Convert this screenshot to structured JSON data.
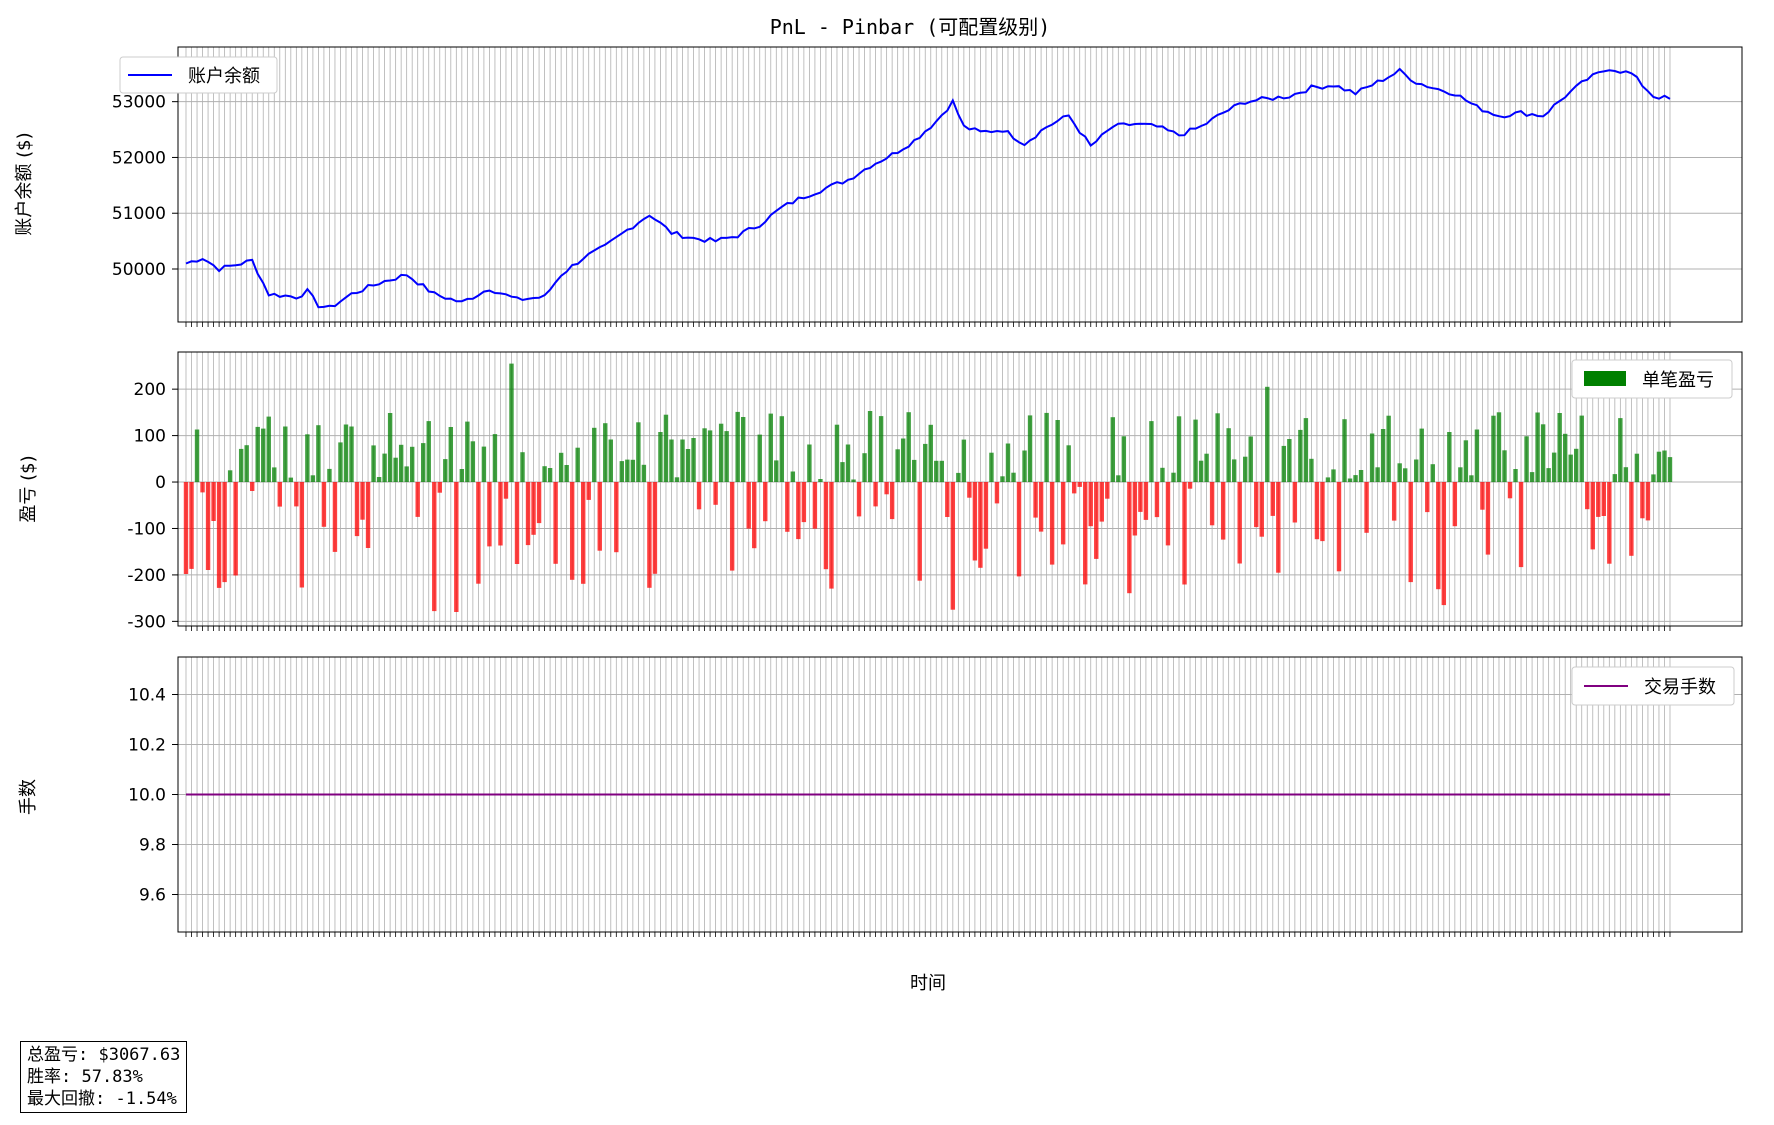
{
  "figure": {
    "title": "PnL - Pinbar (可配置级别)",
    "xlabel": "时间",
    "stats": [
      "总盈亏: $3067.63",
      "胜率: 57.83%",
      "最大回撤: -1.54%"
    ],
    "colors": {
      "balance": "#0000ff",
      "pnl_positive": "#008000",
      "pnl_negative": "#ff0000",
      "lots": "#800080",
      "grid": "#b0b0b0"
    }
  },
  "chart_data": [
    {
      "type": "line",
      "ylabel": "账户余额 ($)",
      "legend": "top-left",
      "ylim": [
        49050,
        53980
      ],
      "yticks": [
        50000,
        51000,
        52000,
        53000
      ],
      "grid": true,
      "n_points": 270,
      "series": [
        {
          "name": "账户余额",
          "anchors": [
            [
              0,
              50100
            ],
            [
              3,
              50200
            ],
            [
              6,
              50000
            ],
            [
              10,
              50100
            ],
            [
              12,
              50150
            ],
            [
              15,
              49550
            ],
            [
              20,
              49500
            ],
            [
              22,
              49600
            ],
            [
              24,
              49350
            ],
            [
              26,
              49300
            ],
            [
              30,
              49550
            ],
            [
              35,
              49750
            ],
            [
              40,
              49900
            ],
            [
              45,
              49550
            ],
            [
              50,
              49400
            ],
            [
              55,
              49650
            ],
            [
              60,
              49450
            ],
            [
              65,
              49500
            ],
            [
              68,
              49900
            ],
            [
              72,
              50200
            ],
            [
              76,
              50400
            ],
            [
              80,
              50700
            ],
            [
              84,
              50980
            ],
            [
              88,
              50650
            ],
            [
              92,
              50550
            ],
            [
              96,
              50500
            ],
            [
              100,
              50600
            ],
            [
              104,
              50800
            ],
            [
              108,
              51100
            ],
            [
              112,
              51300
            ],
            [
              116,
              51450
            ],
            [
              120,
              51600
            ],
            [
              124,
              51850
            ],
            [
              128,
              52050
            ],
            [
              132,
              52300
            ],
            [
              136,
              52650
            ],
            [
              139,
              53000
            ],
            [
              141,
              52550
            ],
            [
              144,
              52450
            ],
            [
              148,
              52500
            ],
            [
              152,
              52250
            ],
            [
              156,
              52550
            ],
            [
              160,
              52750
            ],
            [
              164,
              52200
            ],
            [
              168,
              52550
            ],
            [
              172,
              52600
            ],
            [
              176,
              52550
            ],
            [
              180,
              52400
            ],
            [
              184,
              52550
            ],
            [
              188,
              52800
            ],
            [
              192,
              53000
            ],
            [
              196,
              53050
            ],
            [
              200,
              53100
            ],
            [
              204,
              53250
            ],
            [
              208,
              53300
            ],
            [
              212,
              53150
            ],
            [
              216,
              53350
            ],
            [
              220,
              53550
            ],
            [
              223,
              53350
            ],
            [
              226,
              53250
            ],
            [
              230,
              53150
            ],
            [
              234,
              52900
            ],
            [
              238,
              52750
            ],
            [
              242,
              52800
            ],
            [
              246,
              52750
            ],
            [
              250,
              53100
            ],
            [
              254,
              53400
            ],
            [
              258,
              53600
            ],
            [
              262,
              53500
            ],
            [
              266,
              53100
            ],
            [
              269,
              53050
            ]
          ]
        }
      ]
    },
    {
      "type": "bar",
      "ylabel": "盈亏 ($)",
      "legend": "top-right",
      "ylim": [
        -310,
        280
      ],
      "yticks": [
        -300,
        -200,
        -100,
        0,
        100,
        200
      ],
      "grid": true,
      "n_points": 270,
      "series": [
        {
          "name": "单笔盈亏",
          "notable_values": [
            {
              "index": 59,
              "value": 255
            },
            {
              "index": 196,
              "value": 205
            },
            {
              "index": 139,
              "value": -275
            },
            {
              "index": 49,
              "value": -280
            },
            {
              "index": 45,
              "value": -278
            },
            {
              "index": 228,
              "value": -265
            }
          ],
          "typical_win": 100,
          "typical_loss": -200
        }
      ]
    },
    {
      "type": "line",
      "ylabel": "手数",
      "legend": "top-right",
      "ylim": [
        9.45,
        10.55
      ],
      "yticks": [
        9.6,
        9.8,
        10.0,
        10.2,
        10.4
      ],
      "grid": true,
      "n_points": 270,
      "series": [
        {
          "name": "交易手数",
          "values_constant": 10.0
        }
      ]
    }
  ]
}
